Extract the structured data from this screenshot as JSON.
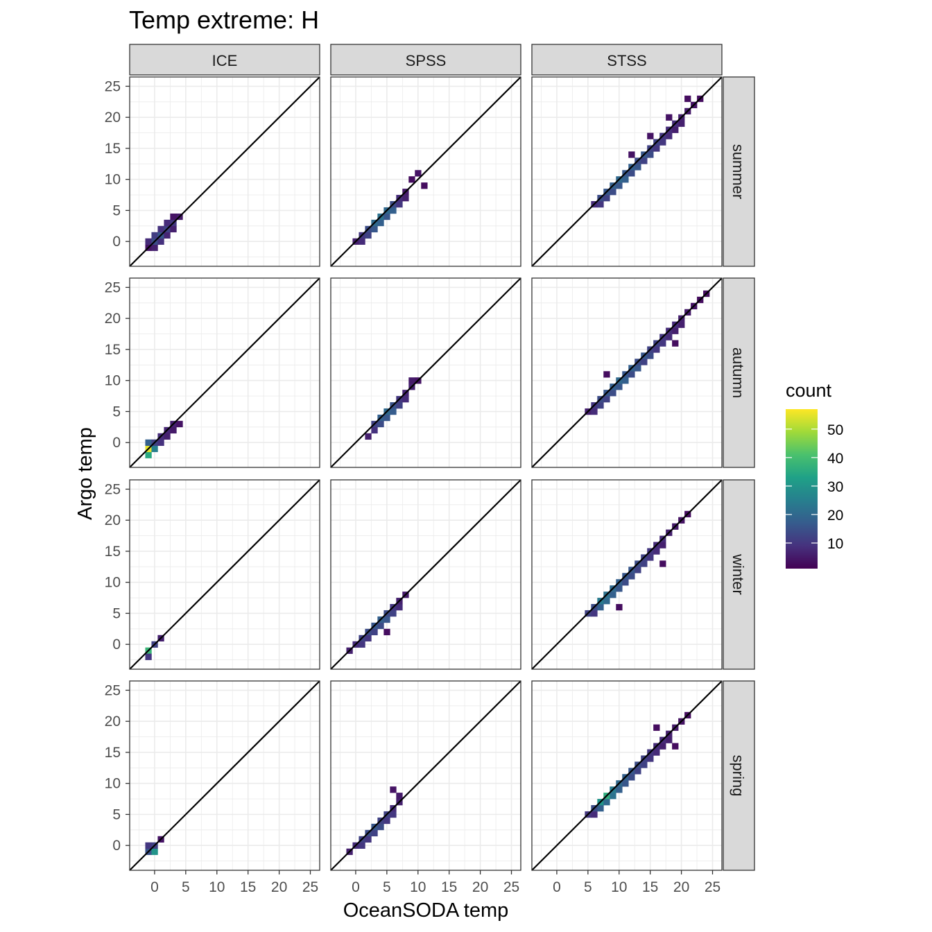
{
  "chart_data": {
    "type": "heatmap",
    "title": "Temp extreme: H",
    "xlabel": "OceanSODA temp",
    "ylabel": "Argo temp",
    "xlim": [
      -4,
      26.5
    ],
    "ylim": [
      -4,
      26.5
    ],
    "x_ticks": [
      0,
      5,
      10,
      15,
      20,
      25
    ],
    "y_ticks": [
      0,
      5,
      10,
      15,
      20,
      25
    ],
    "grid": true,
    "reference_line": "y = x",
    "columns": [
      "ICE",
      "SPSS",
      "STSS"
    ],
    "rows": [
      "summer",
      "autumn",
      "winter",
      "spring"
    ],
    "legend": {
      "title": "count",
      "position": "right",
      "ticks": [
        10,
        20,
        30,
        40,
        50
      ],
      "range": [
        1,
        57
      ],
      "colors": [
        "#440154",
        "#46327e",
        "#365c8d",
        "#277f8e",
        "#1fa187",
        "#4ac16d",
        "#a0da39",
        "#fde725"
      ]
    },
    "panels": [
      {
        "column": "ICE",
        "row": "summer",
        "points": [
          [
            -1,
            -1,
            4
          ],
          [
            0,
            -1,
            6
          ],
          [
            -1,
            0,
            8
          ],
          [
            0,
            0,
            14
          ],
          [
            1,
            0,
            9
          ],
          [
            0,
            1,
            11
          ],
          [
            1,
            1,
            16
          ],
          [
            2,
            1,
            7
          ],
          [
            1,
            2,
            9
          ],
          [
            2,
            2,
            12
          ],
          [
            3,
            2,
            6
          ],
          [
            2,
            3,
            8
          ],
          [
            3,
            3,
            10
          ],
          [
            4,
            4,
            5
          ],
          [
            3,
            4,
            4
          ]
        ]
      },
      {
        "column": "ICE",
        "row": "autumn",
        "points": [
          [
            -1,
            -2,
            35
          ],
          [
            -1,
            -1,
            55
          ],
          [
            0,
            -1,
            25
          ],
          [
            -1,
            0,
            18
          ],
          [
            0,
            0,
            12
          ],
          [
            1,
            0,
            9
          ],
          [
            1,
            1,
            8
          ],
          [
            2,
            1,
            6
          ],
          [
            2,
            2,
            7
          ],
          [
            3,
            2,
            5
          ],
          [
            3,
            3,
            6
          ],
          [
            4,
            3,
            4
          ]
        ]
      },
      {
        "column": "ICE",
        "row": "winter",
        "points": [
          [
            -1,
            -1,
            38
          ],
          [
            -1,
            -2,
            10
          ],
          [
            0,
            0,
            12
          ],
          [
            1,
            1,
            6
          ]
        ]
      },
      {
        "column": "ICE",
        "row": "spring",
        "points": [
          [
            -1,
            -1,
            15
          ],
          [
            0,
            -1,
            30
          ],
          [
            -1,
            0,
            10
          ],
          [
            0,
            0,
            12
          ],
          [
            1,
            1,
            4
          ]
        ]
      },
      {
        "column": "SPSS",
        "row": "summer",
        "points": [
          [
            0,
            0,
            6
          ],
          [
            1,
            0,
            8
          ],
          [
            1,
            1,
            10
          ],
          [
            2,
            1,
            12
          ],
          [
            2,
            2,
            14
          ],
          [
            3,
            2,
            16
          ],
          [
            3,
            3,
            20
          ],
          [
            4,
            3,
            18
          ],
          [
            4,
            4,
            22
          ],
          [
            5,
            4,
            16
          ],
          [
            5,
            5,
            20
          ],
          [
            6,
            5,
            18
          ],
          [
            6,
            6,
            14
          ],
          [
            7,
            6,
            10
          ],
          [
            7,
            7,
            8
          ],
          [
            8,
            7,
            6
          ],
          [
            8,
            8,
            5
          ],
          [
            9,
            10,
            3
          ],
          [
            10,
            11,
            4
          ],
          [
            11,
            9,
            3
          ]
        ]
      },
      {
        "column": "SPSS",
        "row": "autumn",
        "points": [
          [
            2,
            1,
            6
          ],
          [
            3,
            2,
            9
          ],
          [
            3,
            3,
            12
          ],
          [
            4,
            3,
            14
          ],
          [
            4,
            4,
            18
          ],
          [
            5,
            4,
            16
          ],
          [
            5,
            5,
            20
          ],
          [
            6,
            5,
            17
          ],
          [
            6,
            6,
            15
          ],
          [
            7,
            6,
            12
          ],
          [
            7,
            7,
            10
          ],
          [
            8,
            7,
            8
          ],
          [
            8,
            8,
            7
          ],
          [
            9,
            9,
            6
          ],
          [
            9,
            10,
            5
          ],
          [
            10,
            10,
            4
          ]
        ]
      },
      {
        "column": "SPSS",
        "row": "winter",
        "points": [
          [
            -1,
            -1,
            6
          ],
          [
            0,
            0,
            8
          ],
          [
            1,
            0,
            10
          ],
          [
            1,
            1,
            12
          ],
          [
            2,
            1,
            10
          ],
          [
            2,
            2,
            14
          ],
          [
            3,
            2,
            12
          ],
          [
            3,
            3,
            16
          ],
          [
            4,
            3,
            14
          ],
          [
            4,
            4,
            18
          ],
          [
            5,
            4,
            16
          ],
          [
            5,
            5,
            14
          ],
          [
            6,
            5,
            12
          ],
          [
            6,
            6,
            10
          ],
          [
            7,
            6,
            8
          ],
          [
            7,
            7,
            6
          ],
          [
            8,
            8,
            5
          ],
          [
            5,
            2,
            3
          ]
        ]
      },
      {
        "column": "SPSS",
        "row": "spring",
        "points": [
          [
            -1,
            -1,
            6
          ],
          [
            0,
            0,
            8
          ],
          [
            1,
            0,
            10
          ],
          [
            1,
            1,
            12
          ],
          [
            2,
            1,
            10
          ],
          [
            2,
            2,
            14
          ],
          [
            3,
            2,
            12
          ],
          [
            3,
            3,
            16
          ],
          [
            4,
            3,
            14
          ],
          [
            4,
            4,
            12
          ],
          [
            5,
            4,
            10
          ],
          [
            5,
            5,
            12
          ],
          [
            6,
            5,
            10
          ],
          [
            6,
            6,
            8
          ],
          [
            7,
            7,
            6
          ],
          [
            7,
            8,
            5
          ],
          [
            6,
            9,
            4
          ]
        ]
      },
      {
        "column": "STSS",
        "row": "summer",
        "points": [
          [
            6,
            6,
            8
          ],
          [
            7,
            6,
            10
          ],
          [
            7,
            7,
            14
          ],
          [
            8,
            7,
            12
          ],
          [
            8,
            8,
            16
          ],
          [
            9,
            8,
            14
          ],
          [
            9,
            9,
            18
          ],
          [
            10,
            9,
            16
          ],
          [
            10,
            10,
            20
          ],
          [
            11,
            10,
            18
          ],
          [
            11,
            11,
            16
          ],
          [
            12,
            11,
            14
          ],
          [
            12,
            12,
            18
          ],
          [
            13,
            12,
            16
          ],
          [
            13,
            13,
            14
          ],
          [
            14,
            13,
            12
          ],
          [
            14,
            14,
            16
          ],
          [
            15,
            14,
            14
          ],
          [
            15,
            15,
            12
          ],
          [
            16,
            15,
            10
          ],
          [
            16,
            16,
            12
          ],
          [
            17,
            16,
            10
          ],
          [
            17,
            17,
            10
          ],
          [
            18,
            17,
            8
          ],
          [
            18,
            18,
            8
          ],
          [
            19,
            18,
            6
          ],
          [
            19,
            19,
            8
          ],
          [
            20,
            19,
            6
          ],
          [
            20,
            20,
            6
          ],
          [
            21,
            21,
            5
          ],
          [
            22,
            22,
            4
          ],
          [
            23,
            23,
            3
          ],
          [
            21,
            23,
            3
          ],
          [
            18,
            20,
            4
          ],
          [
            15,
            17,
            4
          ],
          [
            12,
            14,
            4
          ]
        ]
      },
      {
        "column": "STSS",
        "row": "autumn",
        "points": [
          [
            5,
            5,
            6
          ],
          [
            6,
            5,
            8
          ],
          [
            6,
            6,
            10
          ],
          [
            7,
            6,
            12
          ],
          [
            7,
            7,
            14
          ],
          [
            8,
            7,
            12
          ],
          [
            8,
            8,
            16
          ],
          [
            9,
            8,
            14
          ],
          [
            9,
            9,
            18
          ],
          [
            10,
            9,
            16
          ],
          [
            10,
            10,
            20
          ],
          [
            11,
            10,
            18
          ],
          [
            11,
            11,
            16
          ],
          [
            12,
            11,
            14
          ],
          [
            12,
            12,
            18
          ],
          [
            13,
            12,
            16
          ],
          [
            13,
            13,
            14
          ],
          [
            14,
            13,
            12
          ],
          [
            14,
            14,
            16
          ],
          [
            15,
            14,
            14
          ],
          [
            15,
            15,
            12
          ],
          [
            16,
            15,
            10
          ],
          [
            16,
            16,
            12
          ],
          [
            17,
            16,
            10
          ],
          [
            17,
            17,
            10
          ],
          [
            18,
            17,
            8
          ],
          [
            18,
            18,
            8
          ],
          [
            19,
            18,
            6
          ],
          [
            19,
            19,
            8
          ],
          [
            20,
            19,
            6
          ],
          [
            20,
            20,
            6
          ],
          [
            21,
            21,
            5
          ],
          [
            22,
            22,
            4
          ],
          [
            23,
            23,
            3
          ],
          [
            24,
            24,
            3
          ],
          [
            8,
            11,
            3
          ],
          [
            19,
            16,
            3
          ]
        ]
      },
      {
        "column": "STSS",
        "row": "winter",
        "points": [
          [
            5,
            5,
            12
          ],
          [
            6,
            5,
            10
          ],
          [
            6,
            6,
            14
          ],
          [
            7,
            6,
            18
          ],
          [
            7,
            7,
            24
          ],
          [
            8,
            7,
            20
          ],
          [
            8,
            8,
            22
          ],
          [
            9,
            8,
            18
          ],
          [
            9,
            9,
            20
          ],
          [
            10,
            9,
            16
          ],
          [
            10,
            10,
            18
          ],
          [
            11,
            10,
            14
          ],
          [
            11,
            11,
            16
          ],
          [
            12,
            11,
            14
          ],
          [
            12,
            12,
            16
          ],
          [
            13,
            12,
            12
          ],
          [
            13,
            13,
            14
          ],
          [
            14,
            13,
            12
          ],
          [
            14,
            14,
            12
          ],
          [
            15,
            14,
            10
          ],
          [
            15,
            15,
            10
          ],
          [
            16,
            15,
            8
          ],
          [
            16,
            16,
            8
          ],
          [
            17,
            16,
            6
          ],
          [
            17,
            17,
            8
          ],
          [
            18,
            18,
            6
          ],
          [
            19,
            19,
            5
          ],
          [
            20,
            20,
            4
          ],
          [
            21,
            21,
            3
          ],
          [
            17,
            13,
            3
          ],
          [
            10,
            6,
            3
          ]
        ]
      },
      {
        "column": "STSS",
        "row": "spring",
        "points": [
          [
            5,
            5,
            10
          ],
          [
            6,
            5,
            8
          ],
          [
            6,
            6,
            14
          ],
          [
            7,
            6,
            18
          ],
          [
            7,
            7,
            30
          ],
          [
            8,
            7,
            20
          ],
          [
            8,
            8,
            36
          ],
          [
            9,
            8,
            22
          ],
          [
            9,
            9,
            24
          ],
          [
            10,
            9,
            18
          ],
          [
            10,
            10,
            20
          ],
          [
            11,
            10,
            16
          ],
          [
            11,
            11,
            18
          ],
          [
            12,
            11,
            14
          ],
          [
            12,
            12,
            16
          ],
          [
            13,
            12,
            12
          ],
          [
            13,
            13,
            14
          ],
          [
            14,
            13,
            12
          ],
          [
            14,
            14,
            12
          ],
          [
            15,
            14,
            10
          ],
          [
            15,
            15,
            10
          ],
          [
            16,
            15,
            8
          ],
          [
            16,
            16,
            8
          ],
          [
            17,
            16,
            6
          ],
          [
            17,
            17,
            8
          ],
          [
            18,
            17,
            6
          ],
          [
            18,
            18,
            6
          ],
          [
            19,
            19,
            5
          ],
          [
            20,
            20,
            4
          ],
          [
            21,
            21,
            3
          ],
          [
            16,
            19,
            3
          ],
          [
            19,
            16,
            3
          ]
        ]
      }
    ]
  }
}
